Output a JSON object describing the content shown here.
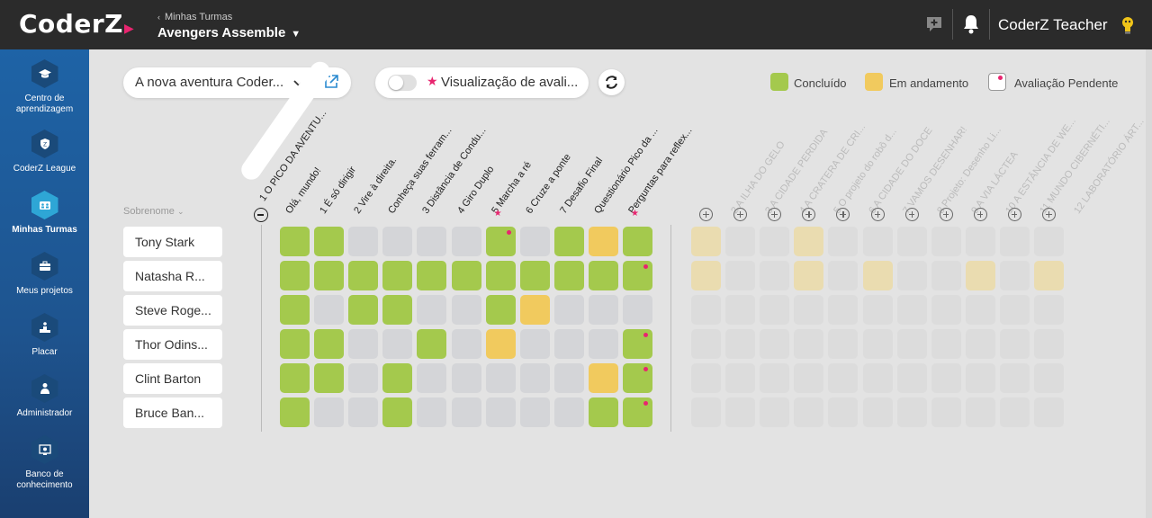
{
  "header": {
    "logo": "CoderZ",
    "breadcrumb": "Minhas Turmas",
    "class_name": "Avengers Assemble",
    "user_name": "CoderZ Teacher",
    "icons": [
      "chat-plus-icon",
      "bell-icon",
      "lightbulb-icon"
    ]
  },
  "sidebar": {
    "items": [
      {
        "label": "Centro de aprendizagem",
        "icon": "graduation-cap-icon",
        "active": false
      },
      {
        "label": "CoderZ League",
        "icon": "league-shield-icon",
        "active": false
      },
      {
        "label": "Minhas Turmas",
        "icon": "group-icon",
        "active": true
      },
      {
        "label": "Meus projetos",
        "icon": "briefcase-icon",
        "active": false
      },
      {
        "label": "Placar",
        "icon": "podium-icon",
        "active": false
      },
      {
        "label": "Administrador",
        "icon": "admin-person-icon",
        "active": false
      },
      {
        "label": "Banco de conhecimento",
        "icon": "knowledge-bank-icon",
        "active": false
      }
    ]
  },
  "toolbar": {
    "mission_select": "A nova aventura Coder...",
    "evaluation_toggle": "Visualização de avali...",
    "evaluation_enabled": false
  },
  "legend": {
    "done": "Concluído",
    "in_progress": "Em andamento",
    "pending": "Avaliação Pendente"
  },
  "colors": {
    "done": "#a4c94d",
    "in_progress": "#f1ca5e",
    "empty": "#d4d5d8",
    "pending_dot": "#e8256f",
    "inactive_progress": "#eadcb0",
    "inactive_empty": "#dcdcdc"
  },
  "sort_label": "Sobrenome",
  "active_columns": [
    {
      "label": "1 O PICO DA AVENTU...",
      "star": false
    },
    {
      "label": "Olá, mundo!",
      "star": false
    },
    {
      "label": "1 É só dirigir",
      "star": false
    },
    {
      "label": "2 Vire à direita.",
      "star": false
    },
    {
      "label": "Conheça suas ferram...",
      "star": false
    },
    {
      "label": "3 Distância de Condu...",
      "star": false
    },
    {
      "label": "4 Giro Duplo",
      "star": false
    },
    {
      "label": "5 Marcha a ré",
      "star": true
    },
    {
      "label": "6 Cruze a ponte",
      "star": false
    },
    {
      "label": "7 Desafio Final",
      "star": false
    },
    {
      "label": "Questionário Pico da ...",
      "star": false
    },
    {
      "label": "Perguntas para reflex...",
      "star": true
    }
  ],
  "inactive_columns": [
    "2 A ILHA DO GELO",
    "3 A CIDADE PERDIDA",
    "4 A CRATERA DE CRI...",
    "5 O projeto do robô d...",
    "6 A CIDADE DO DOCE",
    "7 VAMOS DESENHAR!",
    "8 Projeto: Desenho Li...",
    "9 A VIA LÁCTEA",
    "10 A ESTÂNCIA DE WE...",
    "11 MUNDO CIBERNÉTI...",
    "12 LABORATÓRIO ÁRT..."
  ],
  "students": [
    {
      "name": "Tony Stark",
      "cells": [
        "d",
        "d",
        "e",
        "e",
        "e",
        "e",
        "dp",
        "e",
        "d",
        "p",
        "d"
      ],
      "inactive": [
        "p",
        "e",
        "e",
        "p",
        "e",
        "e",
        "e",
        "e",
        "e",
        "e",
        "e"
      ]
    },
    {
      "name": "Natasha R...",
      "cells": [
        "d",
        "d",
        "d",
        "d",
        "d",
        "d",
        "d",
        "d",
        "d",
        "d",
        "dp"
      ],
      "inactive": [
        "p",
        "e",
        "e",
        "p",
        "e",
        "p",
        "e",
        "e",
        "p",
        "e",
        "p"
      ]
    },
    {
      "name": "Steve Roge...",
      "cells": [
        "d",
        "e",
        "d",
        "d",
        "e",
        "e",
        "d",
        "p",
        "e",
        "e",
        "e"
      ],
      "inactive": [
        "e",
        "e",
        "e",
        "e",
        "e",
        "e",
        "e",
        "e",
        "e",
        "e",
        "e"
      ]
    },
    {
      "name": "Thor Odins...",
      "cells": [
        "d",
        "d",
        "e",
        "e",
        "d",
        "e",
        "p",
        "e",
        "e",
        "e",
        "dp"
      ],
      "inactive": [
        "e",
        "e",
        "e",
        "e",
        "e",
        "e",
        "e",
        "e",
        "e",
        "e",
        "e"
      ]
    },
    {
      "name": "Clint Barton",
      "cells": [
        "d",
        "d",
        "e",
        "d",
        "e",
        "e",
        "e",
        "e",
        "e",
        "p",
        "dp"
      ],
      "inactive": [
        "e",
        "e",
        "e",
        "e",
        "e",
        "e",
        "e",
        "e",
        "e",
        "e",
        "e"
      ]
    },
    {
      "name": "Bruce Ban...",
      "cells": [
        "d",
        "e",
        "e",
        "d",
        "e",
        "e",
        "e",
        "e",
        "e",
        "d",
        "dp"
      ],
      "inactive": [
        "e",
        "e",
        "e",
        "e",
        "e",
        "e",
        "e",
        "e",
        "e",
        "e",
        "e"
      ]
    }
  ]
}
